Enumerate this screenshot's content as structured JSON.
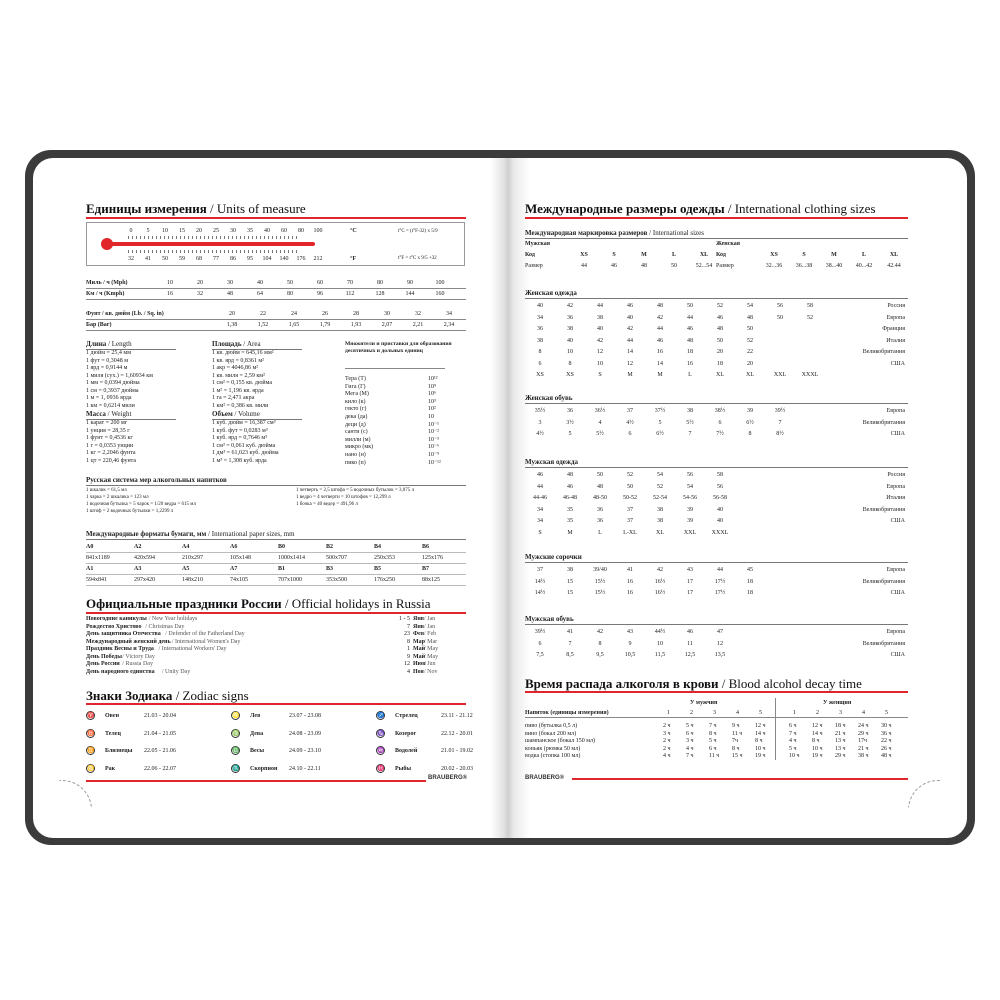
{
  "left": {
    "units_title": "Единицы измерения",
    "units_title_en": " / Units of measure",
    "thermo": {
      "celsius": [
        "0",
        "5",
        "10",
        "15",
        "20",
        "25",
        "30",
        "35",
        "40",
        "60",
        "80",
        "100"
      ],
      "fahrenheit": [
        "32",
        "41",
        "50",
        "59",
        "68",
        "77",
        "86",
        "95",
        "104",
        "140",
        "176",
        "212"
      ],
      "c_unit": "°C",
      "f_unit": "°F",
      "c_formula": "t°C = (t°F-32) x 5/9",
      "f_formula": "t°F = t°C x 9/5 +32"
    },
    "speed": [
      {
        "label": "Миль / ч (Mph)",
        "values": [
          "10",
          "20",
          "30",
          "40",
          "50",
          "60",
          "70",
          "80",
          "90",
          "100"
        ]
      },
      {
        "label": "Км / ч (Kmph)",
        "values": [
          "16",
          "32",
          "48",
          "64",
          "80",
          "96",
          "112",
          "128",
          "144",
          "160"
        ]
      }
    ],
    "pressure": [
      {
        "label": "Фунт / кв. дюйм (Lb. / Sq. in)",
        "values": [
          "20",
          "22",
          "24",
          "26",
          "28",
          "30",
          "32",
          "34"
        ]
      },
      {
        "label": "Бар (Bar)",
        "values": [
          "1,38",
          "1,52",
          "1,65",
          "1,79",
          "1,93",
          "2,07",
          "2,21",
          "2,34"
        ]
      }
    ],
    "length": {
      "title": "Длина",
      "en": " / Length",
      "items": [
        "1 дюйм = 25,4 мм",
        "1 фут = 0,3048 м",
        "1 ярд = 0,9144 м",
        "1 миля (сух.) = 1,60934 км",
        "1 мм = 0,0394 дюйма",
        "1 см = 0,3937 дюйма",
        "1 м = 1, 0936 ярда",
        "1 км = 0,6214 мили"
      ]
    },
    "weight": {
      "title": "Масса",
      "en": " / Weight",
      "items": [
        "1 карат = 200 мг",
        "1 унция = 28,35 г",
        "1 фунт = 0,4536 кг",
        "1 г = 0,0353 унции",
        "1 кг = 2,2046 фунта",
        "1 цт = 220,46 фунта"
      ]
    },
    "area": {
      "title": "Площадь",
      "en": " / Area",
      "items": [
        "1 кв. дюйм = 645,16 мм²",
        "1 кв. ярд = 0,8361 м²",
        "1 акр = 4046,86 м²",
        "1 кв. миля = 2,59 км²",
        "1 см² = 0,155 кв. дюйма",
        "1 м² = 1,196 кв. ярда",
        "1 га = 2,471 акра",
        "1 км² = 0,386 кв. мили"
      ]
    },
    "volume": {
      "title": "Объем",
      "en": " / Volume",
      "items": [
        "1 куб. дюйм = 16,387 см³",
        "1 куб. фут = 0,0283 м³",
        "1 куб. ярд = 0,7646 м³",
        "1 см³ = 0,061 куб. дюйма",
        "1 дм³ = 61,023 куб. дюйма",
        "1 м³ = 1,308 куб. ярда"
      ]
    },
    "prefixes": {
      "title": "Множители и приставки для образования десятичных и дольных единиц",
      "items": [
        [
          "Тера (Т)",
          "10¹²"
        ],
        [
          "Гига (Г)",
          "10⁹"
        ],
        [
          "Мега (М)",
          "10⁶"
        ],
        [
          "кило (к)",
          "10³"
        ],
        [
          "гекто (г)",
          "10²"
        ],
        [
          "дека (да)",
          "10"
        ],
        [
          "деци (д)",
          "10⁻¹"
        ],
        [
          "санти (с)",
          "10⁻²"
        ],
        [
          "милли (м)",
          "10⁻³"
        ],
        [
          "микро (мк)",
          "10⁻⁶"
        ],
        [
          "нано (н)",
          "10⁻⁹"
        ],
        [
          "пико (п)",
          "10⁻¹²"
        ]
      ]
    },
    "alc_measures": {
      "title": "Русская система мер алкогольных напитков",
      "col1": [
        "1 шкалик = 61,5 мл",
        "1 чарка = 2 шкалика = 123 мл",
        "1 водочная бутылка = 5 чарок = 1/20 ведра = 615 мл",
        "1 штоф = 2 водочных бутылки = 1,2299 л"
      ],
      "col2": [
        "1 четверть = 2,5 штофа = 5 водочных бутылок = 3,075 л",
        "1 ведро = 4 четверти = 10 штофов = 12,299 л",
        "1 бочка = 40 ведер = 491,96 л"
      ]
    },
    "paper": {
      "title": "Международные форматы бумаги, мм",
      "en": " / International paper sizes, mm",
      "rows": [
        [
          "A0",
          "A2",
          "A4",
          "A6",
          "B0",
          "B2",
          "B4",
          "B6"
        ],
        [
          "841x1189",
          "420x594",
          "210x297",
          "105x148",
          "1000x1414",
          "500x707",
          "250x353",
          "125x176"
        ],
        [
          "A1",
          "A3",
          "A5",
          "A7",
          "B1",
          "B3",
          "B5",
          "B7"
        ],
        [
          "594x841",
          "297x420",
          "148x210",
          "74x105",
          "707x1000",
          "353x500",
          "176x250",
          "88x125"
        ]
      ]
    },
    "holidays_title": "Официальные праздники России",
    "holidays_title_en": " / Official holidays in Russia",
    "holidays": [
      [
        "Новогодние каникулы",
        " / New Year holidays",
        "1 - 5",
        "Янв",
        " / Jan"
      ],
      [
        "Рождество Христово",
        " / Christmas Day",
        "7",
        "Янв",
        " / Jan"
      ],
      [
        "День защитника Отечества",
        " / Defender of the Fatherland Day",
        "23",
        "Фев",
        " / Feb"
      ],
      [
        "Международный женский день",
        " / International Women's Day",
        "8",
        "Мар",
        " / Mar"
      ],
      [
        "Праздник Весны и Труда",
        " / International Workers' Day",
        "1",
        "Май",
        " / May"
      ],
      [
        "День Победы",
        " / Victory Day",
        "9",
        "Май",
        " / May"
      ],
      [
        "День России",
        " / Russia Day",
        "12",
        "Июн",
        " / Jun"
      ],
      [
        "День народного единства",
        " / Unity Day",
        "4",
        "Ноя",
        " / Nov"
      ]
    ],
    "zodiac_title": "Знаки Зодиака",
    "zodiac_title_en": " / Zodiac signs",
    "zodiac": [
      [
        "Овен",
        "21.03 - 20.04",
        "♈"
      ],
      [
        "Телец",
        "21.04 - 21.05",
        "♉"
      ],
      [
        "Близнецы",
        "22.05 - 21.06",
        "♊"
      ],
      [
        "Рак",
        "22.06 - 22.07",
        "♋"
      ],
      [
        "Лев",
        "23.07 - 23.08",
        "♌"
      ],
      [
        "Дева",
        "24.08 - 23.09",
        "♍"
      ],
      [
        "Весы",
        "24.09 - 23.10",
        "♎"
      ],
      [
        "Скорпион",
        "24.10 - 22.11",
        "♏"
      ],
      [
        "Стрелец",
        "23.11 - 21.12",
        "♐"
      ],
      [
        "Козерог",
        "22.12 - 20.01",
        "♑"
      ],
      [
        "Водолей",
        "21.01 - 19.02",
        "♒"
      ],
      [
        "Рыбы",
        "20.02 - 20.03",
        "♓"
      ]
    ],
    "brand": "BRAUBERG®"
  },
  "right": {
    "title": "Международные размеры одежды",
    "title_en": " / International clothing sizes",
    "intl": {
      "title": "Международная маркировка размеров",
      "en": " / International sizes",
      "men": "Мужская",
      "women": "Женская",
      "code": "Код",
      "size": "Размер",
      "men_codes": [
        "XS",
        "S",
        "M",
        "L",
        "XL"
      ],
      "men_sizes": [
        "44",
        "46",
        "48",
        "50",
        "52...54"
      ],
      "women_codes": [
        "XS",
        "S",
        "M",
        "L",
        "XL"
      ],
      "women_sizes": [
        "32...36",
        "36...38",
        "38...40",
        "40...42",
        "42.44"
      ]
    },
    "tables": [
      {
        "title": "Женская одежда",
        "rows": [
          {
            "c": [
              "40",
              "42",
              "44",
              "46",
              "48",
              "50",
              "52",
              "54",
              "56",
              "58"
            ],
            "l": "Россия"
          },
          {
            "c": [
              "34",
              "36",
              "38",
              "40",
              "42",
              "44",
              "46",
              "48",
              "50",
              "52"
            ],
            "l": "Европа"
          },
          {
            "c": [
              "36",
              "38",
              "40",
              "42",
              "44",
              "46",
              "48",
              "50"
            ],
            "l": "Франция"
          },
          {
            "c": [
              "38",
              "40",
              "42",
              "44",
              "46",
              "48",
              "50",
              "52"
            ],
            "l": "Италия"
          },
          {
            "c": [
              "8",
              "10",
              "12",
              "14",
              "16",
              "18",
              "20",
              "22"
            ],
            "l": "Великобритания"
          },
          {
            "c": [
              "6",
              "8",
              "10",
              "12",
              "14",
              "16",
              "18",
              "20"
            ],
            "l": "США"
          },
          {
            "c": [
              "XS",
              "XS",
              "S",
              "M",
              "M",
              "L",
              "XL",
              "XL",
              "XXL",
              "XXXL"
            ],
            "l": ""
          }
        ]
      },
      {
        "title": "Женская обувь",
        "rows": [
          {
            "c": [
              "35½",
              "36",
              "36½",
              "37",
              "37½",
              "38",
              "38½",
              "39",
              "39½"
            ],
            "l": "Европа"
          },
          {
            "c": [
              "3",
              "3½",
              "4",
              "4½",
              "5",
              "5½",
              "6",
              "6½",
              "7"
            ],
            "l": "Великобритания"
          },
          {
            "c": [
              "4½",
              "5",
              "5½",
              "6",
              "6½",
              "7",
              "7½",
              "8",
              "8½"
            ],
            "l": "США"
          }
        ]
      },
      {
        "title": "Мужская одежда",
        "rows": [
          {
            "c": [
              "46",
              "48",
              "50",
              "52",
              "54",
              "56",
              "58"
            ],
            "l": "Россия"
          },
          {
            "c": [
              "44",
              "46",
              "48",
              "50",
              "52",
              "54",
              "56"
            ],
            "l": "Европа"
          },
          {
            "c": [
              "44-46",
              "46-48",
              "48-50",
              "50-52",
              "52-54",
              "54-56",
              "56-58"
            ],
            "l": "Италия"
          },
          {
            "c": [
              "34",
              "35",
              "36",
              "37",
              "38",
              "39",
              "40"
            ],
            "l": "Великобритания"
          },
          {
            "c": [
              "34",
              "35",
              "36",
              "37",
              "38",
              "39",
              "40"
            ],
            "l": "США"
          },
          {
            "c": [
              "S",
              "M",
              "L",
              "L-XL",
              "XL",
              "XXL",
              "XXXL"
            ],
            "l": ""
          }
        ]
      },
      {
        "title": "Мужские сорочки",
        "rows": [
          {
            "c": [
              "37",
              "38",
              "39/40",
              "41",
              "42",
              "43",
              "44",
              "45"
            ],
            "l": "Европа"
          },
          {
            "c": [
              "14½",
              "15",
              "15½",
              "16",
              "16½",
              "17",
              "17½",
              "18"
            ],
            "l": "Великобритания"
          },
          {
            "c": [
              "14½",
              "15",
              "15½",
              "16",
              "16½",
              "17",
              "17½",
              "18"
            ],
            "l": "США"
          }
        ]
      },
      {
        "title": "Мужская обувь",
        "rows": [
          {
            "c": [
              "39½",
              "41",
              "42",
              "43",
              "44½",
              "46",
              "47"
            ],
            "l": "Европа"
          },
          {
            "c": [
              "6",
              "7",
              "8",
              "9",
              "10",
              "11",
              "12"
            ],
            "l": "Великобритания"
          },
          {
            "c": [
              "7,5",
              "8,5",
              "9,5",
              "10,5",
              "11,5",
              "12,5",
              "13,5"
            ],
            "l": "США"
          }
        ]
      }
    ],
    "alcohol": {
      "title": "Время распада алкоголя в крови",
      "title_en": " / Blood alcohol decay time",
      "men": "У мужчин",
      "women": "У женщин",
      "drink_header": "Напиток (единицы измерения)",
      "cols": [
        "1",
        "2",
        "3",
        "4",
        "5"
      ],
      "rows": [
        {
          "d": "пиво (бутылка 0,5 л)",
          "m": [
            "2 ч",
            "5 ч",
            "7 ч",
            "9 ч",
            "12 ч"
          ],
          "w": [
            "6 ч",
            "12 ч",
            "18 ч",
            "24 ч",
            "30 ч"
          ]
        },
        {
          "d": "вино (бокал 200 мл)",
          "m": [
            "3 ч",
            "6 ч",
            "8 ч",
            "11 ч",
            "14 ч"
          ],
          "w": [
            "7 ч",
            "14 ч",
            "21 ч",
            "29 ч",
            "36 ч"
          ]
        },
        {
          "d": "шампанское (бокал 150 мл)",
          "m": [
            "2 ч",
            "3 ч",
            "5 ч",
            "7ч",
            "8 ч"
          ],
          "w": [
            "4 ч",
            "8 ч",
            "13 ч",
            "17ч",
            "22 ч"
          ]
        },
        {
          "d": "коньяк (рюмка 50 мл)",
          "m": [
            "2 ч",
            "4 ч",
            "6 ч",
            "8 ч",
            "10 ч"
          ],
          "w": [
            "5 ч",
            "10 ч",
            "13 ч",
            "21 ч",
            "26 ч"
          ]
        },
        {
          "d": "водка (стопка 100 мл)",
          "m": [
            "4 ч",
            "7 ч",
            "11 ч",
            "15 ч",
            "19 ч"
          ],
          "w": [
            "10 ч",
            "19 ч",
            "29 ч",
            "38 ч",
            "48 ч"
          ]
        }
      ]
    },
    "brand": "BRAUBERG®"
  },
  "colors": {
    "accent": "#e0262b",
    "cover": "#3b3b3b"
  }
}
